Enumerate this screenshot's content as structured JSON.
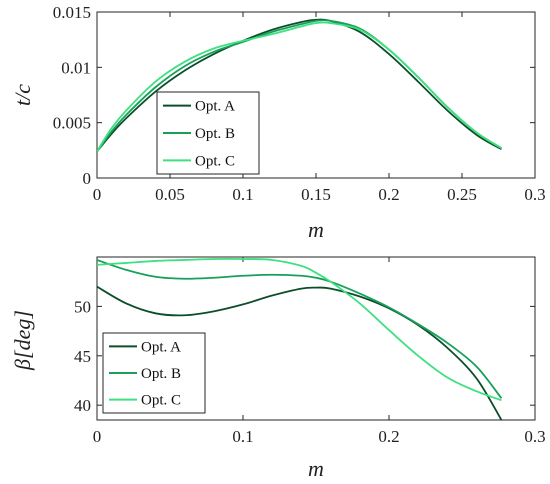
{
  "chart_data": [
    {
      "type": "line",
      "xlabel": "m",
      "ylabel": "t/c",
      "xlim": [
        0,
        0.3
      ],
      "ylim": [
        0,
        0.015
      ],
      "xticks": [
        "0",
        "0.05",
        "0.1",
        "0.15",
        "0.2",
        "0.25",
        "0.3"
      ],
      "yticks": [
        "0",
        "0.005",
        "0.01",
        "0.015"
      ],
      "grid": false,
      "legend": "center-left",
      "series": [
        {
          "name": "Opt. A",
          "color": "#0b4f2a",
          "x": [
            0,
            0.01,
            0.02,
            0.04,
            0.06,
            0.08,
            0.1,
            0.12,
            0.14,
            0.15,
            0.16,
            0.18,
            0.2,
            0.22,
            0.24,
            0.26,
            0.277
          ],
          "y": [
            0.0024,
            0.004,
            0.0054,
            0.0078,
            0.0097,
            0.0112,
            0.0124,
            0.0134,
            0.0141,
            0.0143,
            0.0142,
            0.0132,
            0.0112,
            0.0087,
            0.0061,
            0.0039,
            0.0026
          ]
        },
        {
          "name": "Opt. B",
          "color": "#16a05a",
          "x": [
            0,
            0.01,
            0.02,
            0.04,
            0.06,
            0.08,
            0.1,
            0.12,
            0.14,
            0.15,
            0.16,
            0.18,
            0.2,
            0.22,
            0.24,
            0.26,
            0.277
          ],
          "y": [
            0.0024,
            0.0042,
            0.0057,
            0.0082,
            0.0101,
            0.0114,
            0.0123,
            0.0132,
            0.0139,
            0.0142,
            0.0142,
            0.0135,
            0.0116,
            0.0091,
            0.0064,
            0.0041,
            0.0027
          ]
        },
        {
          "name": "Opt. C",
          "color": "#3ee07f",
          "x": [
            0,
            0.01,
            0.02,
            0.04,
            0.06,
            0.08,
            0.1,
            0.12,
            0.14,
            0.15,
            0.16,
            0.18,
            0.2,
            0.22,
            0.24,
            0.26,
            0.277
          ],
          "y": [
            0.0024,
            0.0045,
            0.0061,
            0.0087,
            0.0105,
            0.0117,
            0.0124,
            0.013,
            0.0137,
            0.014,
            0.014,
            0.0134,
            0.0116,
            0.0091,
            0.0064,
            0.0041,
            0.0027
          ]
        }
      ]
    },
    {
      "type": "line",
      "xlabel": "m",
      "ylabel": "β[deg]",
      "xlim": [
        0,
        0.3
      ],
      "ylim": [
        38.5,
        55
      ],
      "xticks": [
        "0",
        "0.1",
        "0.2",
        "0.3"
      ],
      "yticks": [
        "40",
        "45",
        "50"
      ],
      "grid": false,
      "legend": "bottom-left",
      "series": [
        {
          "name": "Opt. A",
          "color": "#0b4f2a",
          "x": [
            0,
            0.02,
            0.04,
            0.06,
            0.08,
            0.1,
            0.12,
            0.14,
            0.15,
            0.16,
            0.18,
            0.2,
            0.22,
            0.24,
            0.26,
            0.277
          ],
          "y": [
            52,
            50.3,
            49.3,
            49.1,
            49.5,
            50.2,
            51.1,
            51.8,
            51.9,
            51.8,
            51,
            49.8,
            48.1,
            45.8,
            42.7,
            38.5
          ]
        },
        {
          "name": "Opt. B",
          "color": "#16a05a",
          "x": [
            0,
            0.02,
            0.04,
            0.06,
            0.08,
            0.1,
            0.12,
            0.14,
            0.15,
            0.16,
            0.18,
            0.2,
            0.22,
            0.24,
            0.26,
            0.277
          ],
          "y": [
            54.7,
            53.7,
            53,
            52.8,
            52.9,
            53.1,
            53.2,
            53.1,
            52.9,
            52.5,
            51.3,
            49.9,
            48.2,
            46.3,
            43.9,
            40.7
          ]
        },
        {
          "name": "Opt. C",
          "color": "#3ee07f",
          "x": [
            0,
            0.02,
            0.04,
            0.06,
            0.08,
            0.1,
            0.12,
            0.14,
            0.15,
            0.16,
            0.18,
            0.2,
            0.22,
            0.24,
            0.26,
            0.277
          ],
          "y": [
            54.2,
            54.4,
            54.6,
            54.7,
            54.8,
            54.8,
            54.7,
            54.1,
            53.4,
            52.5,
            50.3,
            47.6,
            45,
            42.8,
            41.4,
            40.5
          ]
        }
      ]
    }
  ]
}
